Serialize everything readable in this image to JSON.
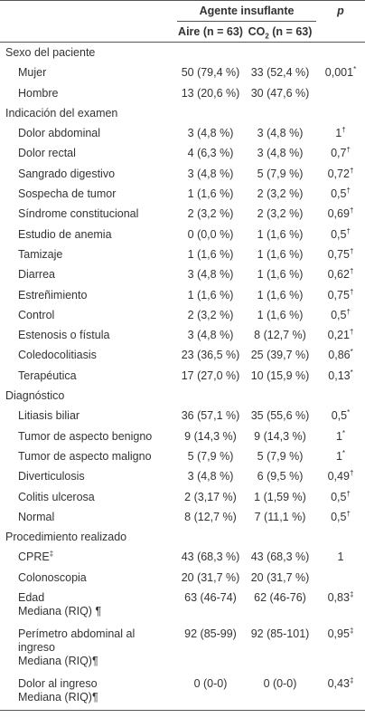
{
  "header": {
    "group": "Agente insuflante",
    "p": "p",
    "aire": "Aire (n = 63)",
    "co2_a": "CO",
    "co2_sub": "2",
    "co2_b": " (n = 63)"
  },
  "sections": [
    {
      "title": "Sexo del paciente",
      "rows": [
        {
          "label": "Mujer",
          "aire": "50 (79,4 %)",
          "co2": "33 (52,4 %)",
          "p": "0,001",
          "p_mark": "*"
        },
        {
          "label": "Hombre",
          "aire": "13 (20,6 %)",
          "co2": "30 (47,6 %)"
        }
      ]
    },
    {
      "title": "Indicación del examen",
      "rows": [
        {
          "label": "Dolor abdominal",
          "aire": "3 (4,8 %)",
          "co2": "3 (4,8 %)",
          "p": "1",
          "p_mark": "†"
        },
        {
          "label": "Dolor rectal",
          "aire": "4 (6,3 %)",
          "co2": "3 (4,8 %)",
          "p": "0,7",
          "p_mark": "†"
        },
        {
          "label": "Sangrado digestivo",
          "aire": "3 (4,8 %)",
          "co2": "5 (7,9 %)",
          "p": "0,72",
          "p_mark": "†"
        },
        {
          "label": "Sospecha de tumor",
          "aire": "1 (1,6 %)",
          "co2": "2 (3,2 %)",
          "p": "0,5",
          "p_mark": "†"
        },
        {
          "label": "Síndrome constitucional",
          "aire": "2 (3,2 %)",
          "co2": "2 (3,2 %)",
          "p": "0,69",
          "p_mark": "†"
        },
        {
          "label": "Estudio de anemia",
          "aire": "0 (0,0 %)",
          "co2": "1 (1,6 %)",
          "p": "0,5",
          "p_mark": "†"
        },
        {
          "label": "Tamizaje",
          "aire": "1 (1,6 %)",
          "co2": "1 (1,6 %)",
          "p": "0,75",
          "p_mark": "†"
        },
        {
          "label": "Diarrea",
          "aire": "3 (4,8 %)",
          "co2": "1 (1,6 %)",
          "p": "0,62",
          "p_mark": "†"
        },
        {
          "label": "Estreñimiento",
          "aire": "1 (1,6 %)",
          "co2": "1 (1,6 %)",
          "p": "0,75",
          "p_mark": "†"
        },
        {
          "label": "Control",
          "aire": "2 (3,2 %)",
          "co2": "1 (1,6 %)",
          "p": "0,5",
          "p_mark": "†"
        },
        {
          "label": "Estenosis o fístula",
          "aire": "3 (4,8 %)",
          "co2": "8 (12,7 %)",
          "p": "0,21",
          "p_mark": "†"
        },
        {
          "label": "Coledocolitiasis",
          "aire": "23 (36,5 %)",
          "co2": "25 (39,7 %)",
          "p": "0,86",
          "p_mark": "*"
        },
        {
          "label": "Terapéutica",
          "aire": "17 (27,0 %)",
          "co2": "10 (15,9 %)",
          "p": "0,13",
          "p_mark": "*"
        }
      ]
    },
    {
      "title": "Diagnóstico",
      "rows": [
        {
          "label": "Litiasis biliar",
          "aire": "36 (57,1 %)",
          "co2": "35 (55,6 %)",
          "p": "0,5",
          "p_mark": "*"
        },
        {
          "label": "Tumor de aspecto benigno",
          "aire": "9 (14,3 %)",
          "co2": "9 (14,3 %)",
          "p": "1",
          "p_mark": "*"
        },
        {
          "label": "Tumor de aspecto maligno",
          "aire": "5 (7,9 %)",
          "co2": "5 (7,9 %)",
          "p": "1",
          "p_mark": "*"
        },
        {
          "label": "Diverticulosis",
          "aire": "3 (4,8 %)",
          "co2": "6 (9,5 %)",
          "p": "0,49",
          "p_mark": "†"
        },
        {
          "label": "Colitis ulcerosa",
          "aire": "2 (3,17 %)",
          "co2": "1 (1,59 %)",
          "p": "0,5",
          "p_mark": "†"
        },
        {
          "label": "Normal",
          "aire": "8 (12,7 %)",
          "co2": "7 (11,1 %)",
          "p": "0,5",
          "p_mark": "†"
        }
      ]
    },
    {
      "title": "Procedimiento realizado",
      "rows": [
        {
          "label": "CPRE",
          "label_mark": "‡",
          "aire": "43 (68,3 %)",
          "co2": "43 (68,3 %)",
          "p": "1"
        },
        {
          "label": "Colonoscopia",
          "aire": "20 (31,7 %)",
          "co2": "20 (31,7 %)"
        },
        {
          "label": [
            "Edad",
            "Mediana (RIQ) ¶"
          ],
          "aire": "63 (46-74)",
          "co2": "62 (46-76)",
          "p": "0,83",
          "p_mark": "‡"
        },
        {
          "label": [
            "Perímetro abdominal al",
            "ingreso",
            "Mediana (RIQ)¶"
          ],
          "aire": "92 (85-99)",
          "co2": "92 (85-101)",
          "p": "0,95",
          "p_mark": "‡"
        },
        {
          "label": [
            "Dolor al ingreso",
            "Mediana (RIQ)¶"
          ],
          "aire": "0 (0-0)",
          "co2": "0 (0-0)",
          "p": "0,43",
          "p_mark": "‡"
        }
      ]
    }
  ]
}
